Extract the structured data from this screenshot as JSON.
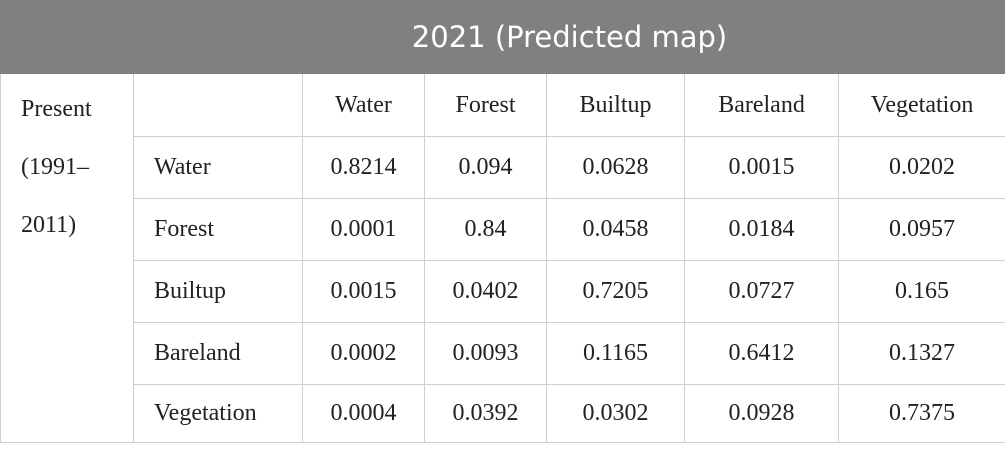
{
  "header": {
    "title": "2021 (Predicted map)"
  },
  "table": {
    "row_header": "Present (1991–2011)",
    "col_headers": [
      "Water",
      "Forest",
      "Builtup",
      "Bareland",
      "Vegetation"
    ],
    "rows": [
      {
        "label": "Water",
        "values": [
          "0.8214",
          "0.094",
          "0.0628",
          "0.0015",
          "0.0202"
        ]
      },
      {
        "label": "Forest",
        "values": [
          "0.0001",
          "0.84",
          "0.0458",
          "0.0184",
          "0.0957"
        ]
      },
      {
        "label": "Builtup",
        "values": [
          "0.0015",
          "0.0402",
          "0.7205",
          "0.0727",
          "0.165"
        ]
      },
      {
        "label": "Bareland",
        "values": [
          "0.0002",
          "0.0093",
          "0.1165",
          "0.6412",
          "0.1327"
        ]
      },
      {
        "label": "Vegetation",
        "values": [
          "0.0004",
          "0.0392",
          "0.0302",
          "0.0928",
          "0.7375"
        ]
      }
    ]
  }
}
